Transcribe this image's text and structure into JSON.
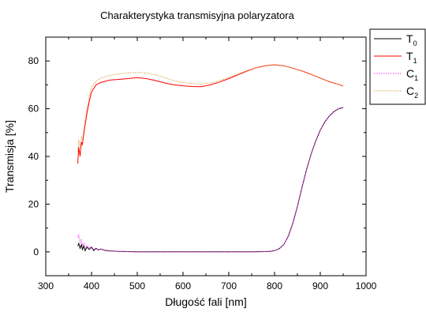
{
  "chart_data": {
    "type": "line",
    "title": "Charakterystyka transmisyjna polaryzatora",
    "xlabel": "Długość fali [nm]",
    "ylabel": "Transmisja [%]",
    "xlim": [
      300,
      1000
    ],
    "ylim": [
      -10,
      90
    ],
    "xticks": [
      300,
      400,
      500,
      600,
      700,
      800,
      900,
      1000
    ],
    "yticks": [
      0,
      20,
      40,
      60,
      80
    ],
    "grid": false,
    "legend_position": "top-right-outside",
    "series": [
      {
        "name": "T0",
        "label_main": "T",
        "label_sub": "0",
        "color": "#000000",
        "dash": "solid",
        "x": [
          370,
          372,
          375,
          378,
          380,
          383,
          386,
          390,
          395,
          400,
          405,
          410,
          415,
          420,
          430,
          440,
          450,
          460,
          480,
          500,
          550,
          600,
          650,
          700,
          750,
          780,
          790,
          800,
          810,
          820,
          830,
          840,
          850,
          860,
          870,
          880,
          890,
          900,
          910,
          920,
          930,
          940,
          950
        ],
        "y": [
          2.5,
          3.5,
          1.5,
          3.0,
          1.0,
          2.5,
          0.5,
          2.0,
          1.0,
          2.0,
          0.5,
          1.5,
          0.8,
          1.2,
          0.6,
          0.4,
          0.3,
          0.2,
          0.1,
          0.0,
          0.0,
          0.0,
          0.0,
          0.0,
          0.0,
          0.1,
          0.2,
          0.5,
          1.3,
          3.0,
          6.5,
          12.0,
          19.0,
          27.0,
          34.5,
          41.0,
          46.5,
          51.0,
          54.5,
          57.0,
          58.8,
          60.0,
          60.5
        ]
      },
      {
        "name": "T1",
        "label_main": "T",
        "label_sub": "1",
        "color": "#ff0000",
        "dash": "solid",
        "x": [
          370,
          372,
          375,
          378,
          380,
          385,
          390,
          395,
          400,
          410,
          420,
          440,
          460,
          480,
          500,
          520,
          540,
          560,
          580,
          600,
          620,
          640,
          660,
          680,
          700,
          720,
          740,
          760,
          780,
          800,
          820,
          840,
          860,
          880,
          900,
          920,
          940,
          950
        ],
        "y": [
          37.0,
          44.0,
          40.0,
          46.0,
          45.0,
          52.0,
          58.0,
          63.0,
          67.0,
          70.0,
          71.0,
          72.0,
          72.3,
          72.6,
          73.0,
          72.6,
          71.8,
          70.8,
          70.0,
          69.6,
          69.3,
          69.2,
          70.0,
          71.2,
          72.6,
          74.2,
          75.8,
          77.2,
          78.0,
          78.4,
          78.0,
          77.0,
          75.8,
          74.4,
          72.8,
          71.3,
          70.2,
          69.5
        ]
      },
      {
        "name": "C1",
        "label_main": "C",
        "label_sub": "1",
        "color": "#ff33ff",
        "dash": "dotted",
        "x": [
          370,
          372,
          375,
          378,
          380,
          383,
          386,
          390,
          395,
          400,
          405,
          410,
          415,
          420,
          430,
          440,
          450,
          460,
          480,
          500,
          550,
          600,
          650,
          700,
          750,
          780,
          790,
          800,
          810,
          820,
          830,
          840,
          850,
          860,
          870,
          880,
          890,
          900,
          910,
          920,
          930,
          940,
          950
        ],
        "y": [
          6.0,
          7.0,
          4.0,
          5.0,
          2.5,
          3.5,
          1.5,
          2.5,
          1.5,
          2.2,
          1.0,
          1.6,
          0.9,
          1.2,
          0.7,
          0.5,
          0.3,
          0.2,
          0.1,
          0.0,
          0.0,
          0.0,
          0.0,
          0.0,
          0.0,
          0.1,
          0.2,
          0.5,
          1.3,
          3.0,
          6.5,
          12.0,
          19.0,
          27.0,
          34.5,
          41.0,
          46.5,
          51.0,
          54.5,
          57.0,
          58.8,
          60.0,
          60.5
        ]
      },
      {
        "name": "C2",
        "label_main": "C",
        "label_sub": "2",
        "color": "#d9a040",
        "dash": "dotted",
        "x": [
          370,
          372,
          375,
          378,
          380,
          385,
          390,
          395,
          400,
          410,
          420,
          440,
          460,
          480,
          500,
          520,
          540,
          560,
          580,
          600,
          620,
          640,
          660,
          680,
          700,
          720,
          740,
          760,
          780,
          800,
          820,
          840,
          860,
          880,
          900,
          920,
          940,
          950
        ],
        "y": [
          42.0,
          47.0,
          44.0,
          48.0,
          47.0,
          54.0,
          60.0,
          65.0,
          69.0,
          71.5,
          72.8,
          74.0,
          74.6,
          75.0,
          75.2,
          75.0,
          74.2,
          73.0,
          71.8,
          71.0,
          70.5,
          70.3,
          70.8,
          71.8,
          73.0,
          74.6,
          76.0,
          77.2,
          78.0,
          78.4,
          78.0,
          77.0,
          75.8,
          74.4,
          72.8,
          71.3,
          70.2,
          69.5
        ]
      }
    ]
  }
}
